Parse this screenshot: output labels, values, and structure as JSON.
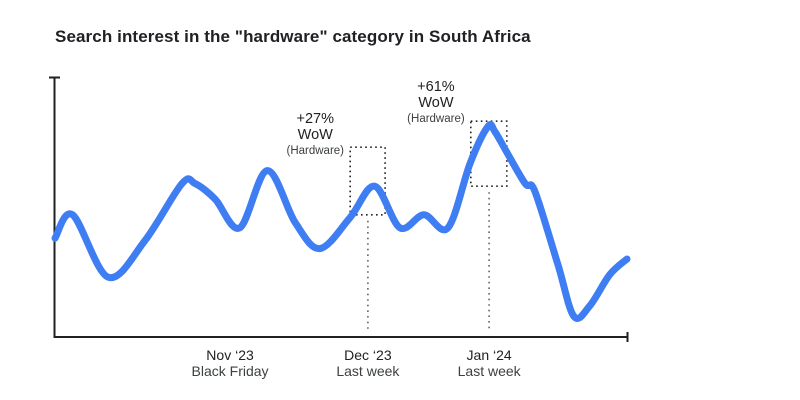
{
  "chart_data": {
    "type": "line",
    "title": "Search interest in the \"hardware\" category in South Africa",
    "xlabel": "",
    "ylabel": "",
    "ylim": [
      0,
      100
    ],
    "y_ticks": [],
    "grid": false,
    "legend": "none",
    "line_color": "#3f7df2",
    "axis_color": "#202124",
    "series": [
      {
        "name": "hardware-search-interest",
        "points": [
          [
            0.0,
            38
          ],
          [
            0.031,
            47
          ],
          [
            0.093,
            23
          ],
          [
            0.157,
            37
          ],
          [
            0.222,
            59
          ],
          [
            0.245,
            59
          ],
          [
            0.28,
            53
          ],
          [
            0.323,
            42
          ],
          [
            0.371,
            64
          ],
          [
            0.42,
            44
          ],
          [
            0.463,
            34
          ],
          [
            0.516,
            46
          ],
          [
            0.559,
            58
          ],
          [
            0.603,
            42
          ],
          [
            0.645,
            47
          ],
          [
            0.687,
            42
          ],
          [
            0.726,
            67
          ],
          [
            0.757,
            81
          ],
          [
            0.769,
            79
          ],
          [
            0.79,
            71
          ],
          [
            0.822,
            59
          ],
          [
            0.839,
            56
          ],
          [
            0.879,
            28
          ],
          [
            0.907,
            8
          ],
          [
            0.935,
            12
          ],
          [
            0.97,
            24
          ],
          [
            1.0,
            30
          ]
        ]
      }
    ],
    "x_ticks": [
      {
        "x_frac": 0.306,
        "line1": "Nov ‘23",
        "line2": "Black Friday"
      },
      {
        "x_frac": 0.547,
        "line1": "Dec ‘23",
        "line2": "Last week"
      },
      {
        "x_frac": 0.759,
        "line1": "Jan ‘24",
        "line2": "Last week"
      }
    ],
    "annotations": [
      {
        "pct": "+27%",
        "unit": "WoW",
        "category": "(Hardware)",
        "box": {
          "x0_frac": 0.516,
          "x1_frac": 0.577,
          "v_top": 73,
          "v_bottom": 47
        },
        "leader_x_frac": 0.547,
        "leader_v_bottom": 3,
        "label_center_x_frac": 0.455,
        "label_top_y": 112
      },
      {
        "pct": "+61%",
        "unit": "WoW",
        "category": "(Hardware)",
        "box": {
          "x0_frac": 0.727,
          "x1_frac": 0.79,
          "v_top": 83,
          "v_bottom": 58
        },
        "leader_x_frac": 0.759,
        "leader_v_bottom": 3,
        "label_center_x_frac": 0.666,
        "label_top_y": 80
      }
    ]
  }
}
